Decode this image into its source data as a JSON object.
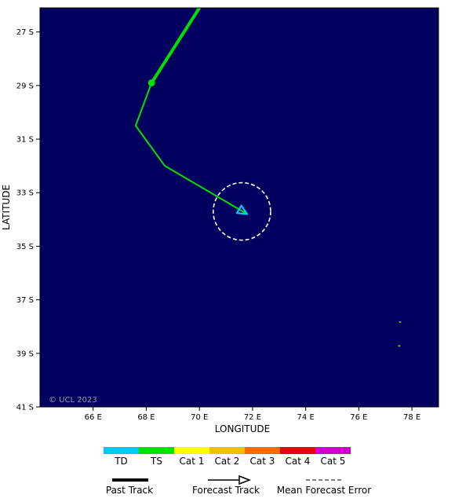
{
  "map": {
    "colors": {
      "ocean": "#00005e",
      "land": "#9a9a30",
      "track_ts": "#00e000",
      "track_td": "#00c8ff",
      "error_circle": "#ffffff"
    },
    "x_axis": {
      "title": "LONGITUDE",
      "min": 64.0,
      "max": 79.0,
      "ticks": [
        {
          "value": 66,
          "label": "66 E"
        },
        {
          "value": 68,
          "label": "68 E"
        },
        {
          "value": 70,
          "label": "70 E"
        },
        {
          "value": 72,
          "label": "72 E"
        },
        {
          "value": 74,
          "label": "74 E"
        },
        {
          "value": 76,
          "label": "76 E"
        },
        {
          "value": 78,
          "label": "78 E"
        }
      ]
    },
    "y_axis": {
      "title": "LATITUDE",
      "min": -41.0,
      "max": -26.1,
      "ticks": [
        {
          "value": -27,
          "label": "27 S"
        },
        {
          "value": -29,
          "label": "29 S"
        },
        {
          "value": -31,
          "label": "31 S"
        },
        {
          "value": -33,
          "label": "33 S"
        },
        {
          "value": -35,
          "label": "35 S"
        },
        {
          "value": -37,
          "label": "37 S"
        },
        {
          "value": -39,
          "label": "39 S"
        },
        {
          "value": -41,
          "label": "41 S"
        }
      ]
    },
    "past_track": [
      {
        "lon": 70.0,
        "lat": -26.1
      },
      {
        "lon": 68.2,
        "lat": -28.9
      }
    ],
    "forecast_track": [
      {
        "lon": 68.2,
        "lat": -28.9,
        "category": "TS"
      },
      {
        "lon": 67.6,
        "lat": -30.5,
        "category": "TS"
      },
      {
        "lon": 68.7,
        "lat": -32.0,
        "category": "TS"
      },
      {
        "lon": 71.8,
        "lat": -33.8,
        "category": "TD"
      }
    ],
    "current_position": {
      "lon": 68.2,
      "lat": -28.9
    },
    "error_circle": {
      "lon": 71.6,
      "lat": -33.7,
      "radius_deg": 1.08
    },
    "islands": [
      {
        "lon": 77.55,
        "lat": -37.83
      },
      {
        "lon": 77.52,
        "lat": -38.72
      }
    ],
    "copyright": "© UCL 2023"
  },
  "legend": {
    "categories": [
      {
        "label": "TD",
        "color": "#00c8ff"
      },
      {
        "label": "TS",
        "color": "#00e000"
      },
      {
        "label": "Cat 1",
        "color": "#ffff00"
      },
      {
        "label": "Cat 2",
        "color": "#f0c000"
      },
      {
        "label": "Cat 3",
        "color": "#ff6a00"
      },
      {
        "label": "Cat 4",
        "color": "#ee0000"
      },
      {
        "label": "Cat 5",
        "color": "#cc00cc"
      }
    ],
    "past_track_label": "Past Track",
    "forecast_track_label": "Forecast Track",
    "mean_error_label": "Mean Forecast Error"
  }
}
